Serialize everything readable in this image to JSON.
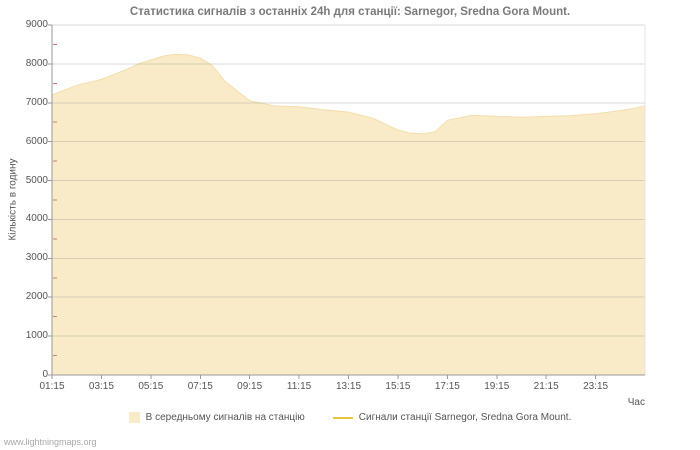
{
  "page": {
    "watermark": "www.lightningmaps.org"
  },
  "chart_data": {
    "type": "area",
    "title": "Статистика сигналів з останніх 24h для станції: Sarnegor, Sredna Gora Mount.",
    "xlabel": "Час",
    "ylabel": "Кількість в годину",
    "ylim": [
      0,
      9000
    ],
    "yticks": [
      0,
      1000,
      2000,
      3000,
      4000,
      5000,
      6000,
      7000,
      8000,
      9000
    ],
    "xtick_labels": [
      "01:15",
      "03:15",
      "05:15",
      "07:15",
      "09:15",
      "11:15",
      "13:15",
      "15:15",
      "17:15",
      "19:15",
      "21:15",
      "23:15"
    ],
    "xtick_hours": [
      0,
      2,
      4,
      6,
      8,
      10,
      12,
      14,
      16,
      18,
      20,
      22
    ],
    "x_range": 24,
    "grid": "horizontal",
    "legend_position": "bottom",
    "series": [
      {
        "name": "В середньому сигналів на станцію",
        "type": "area",
        "color": "#faebc8",
        "hours": [
          0,
          1,
          2,
          3,
          3.5,
          4,
          4.5,
          5,
          5.5,
          6,
          6.5,
          7,
          8,
          9,
          10,
          11,
          12,
          13,
          14,
          14.5,
          15,
          15.5,
          16,
          17,
          18,
          19,
          20,
          21,
          22,
          23,
          23.5,
          24
        ],
        "values": [
          7200,
          7450,
          7600,
          7850,
          8000,
          8100,
          8200,
          8250,
          8230,
          8150,
          7950,
          7550,
          7050,
          6920,
          6900,
          6820,
          6760,
          6600,
          6300,
          6220,
          6200,
          6250,
          6550,
          6680,
          6650,
          6630,
          6650,
          6670,
          6720,
          6800,
          6850,
          6920
        ]
      },
      {
        "name": "Сигнали станції Sarnegor, Sredna Gora Mount.",
        "type": "line",
        "color": "#e8c53f",
        "values": []
      }
    ]
  }
}
